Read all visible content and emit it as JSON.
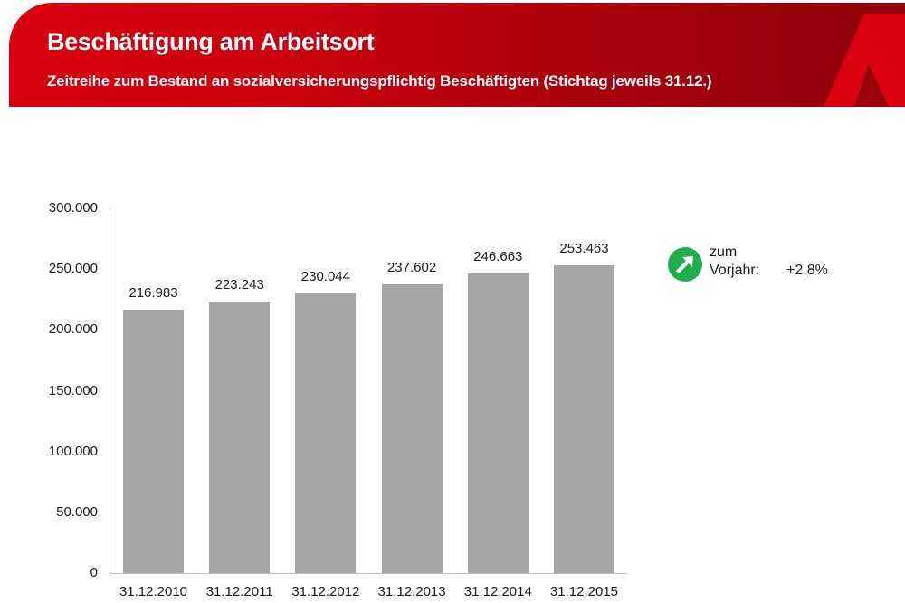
{
  "header": {
    "title": "Beschäftigung am Arbeitsort",
    "subtitle": "Zeitreihe zum Bestand an sozialversicherungspflichtig Beschäftigten (Stichtag jeweils 31.12.)",
    "logo_icon": "agency-a-logo-icon"
  },
  "colors": {
    "banner_red": "#d9000f",
    "banner_dark_red": "#8f000a",
    "bar_gray": "#a6a6a6",
    "indicator_green": "#1fae4b"
  },
  "indicator": {
    "icon": "arrow-up-right-icon",
    "line1": "zum",
    "line2": "Vorjahr:",
    "value": "+2,8%"
  },
  "chart_data": {
    "type": "bar",
    "title": "Beschäftigung am Arbeitsort",
    "subtitle": "Zeitreihe zum Bestand an sozialversicherungspflichtig Beschäftigten (Stichtag jeweils 31.12.)",
    "categories": [
      "31.12.2010",
      "31.12.2011",
      "31.12.2012",
      "31.12.2013",
      "31.12.2014",
      "31.12.2015"
    ],
    "values": [
      216983,
      223243,
      230044,
      237602,
      246663,
      253463
    ],
    "value_labels": [
      "216.983",
      "223.243",
      "230.044",
      "237.602",
      "246.663",
      "253.463"
    ],
    "xlabel": "",
    "ylabel": "",
    "ylim": [
      0,
      300000
    ],
    "yticks": [
      0,
      50000,
      100000,
      150000,
      200000,
      250000,
      300000
    ],
    "ytick_labels": [
      "0",
      "50.000",
      "100.000",
      "150.000",
      "200.000",
      "250.000",
      "300.000"
    ],
    "grid": false,
    "legend": "none",
    "annotation": "zum Vorjahr: +2,8%"
  }
}
